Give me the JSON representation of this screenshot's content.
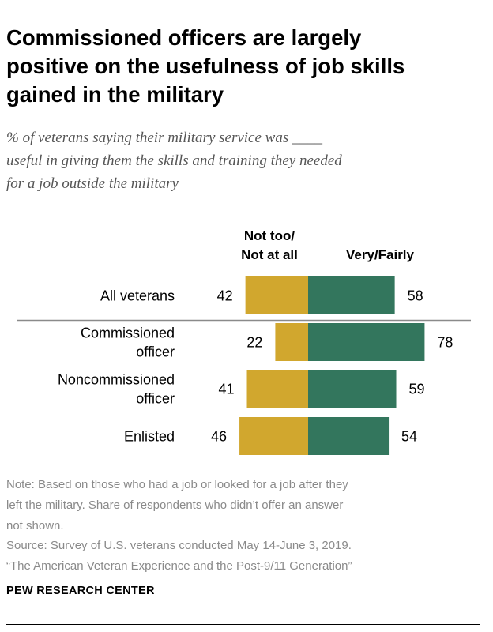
{
  "title_lines": [
    "Commissioned officers are largely",
    "positive on the usefulness of job skills",
    "gained in the military"
  ],
  "subtitle_lines": [
    "% of veterans saying their military service was ____",
    "useful in giving them the skills and training they needed",
    "for a job outside the military"
  ],
  "chart_data": {
    "type": "bar",
    "orientation": "horizontal-diverging",
    "categories": [
      [
        "All veterans"
      ],
      [
        "Commissioned",
        "officer"
      ],
      [
        "Noncommissioned",
        "officer"
      ],
      [
        "Enlisted"
      ]
    ],
    "series": [
      {
        "name_lines": [
          "Not too/",
          "Not at all"
        ],
        "values": [
          42,
          22,
          41,
          46
        ],
        "color": "#d1a72e"
      },
      {
        "name_lines": [
          "Very/Fairly"
        ],
        "values": [
          58,
          78,
          59,
          54
        ],
        "color": "#33765d"
      }
    ],
    "separator_after_index": 0
  },
  "note_lines": [
    "Note: Based on those who had a job or looked for a job after they",
    "left the military. Share of respondents who didn’t offer an answer",
    "not shown."
  ],
  "source_lines": [
    "Source: Survey of U.S. veterans conducted May 14-June 3, 2019.",
    "“The American Veteran Experience and the Post-9/11 Generation”"
  ],
  "brand": "PEW RESEARCH CENTER"
}
